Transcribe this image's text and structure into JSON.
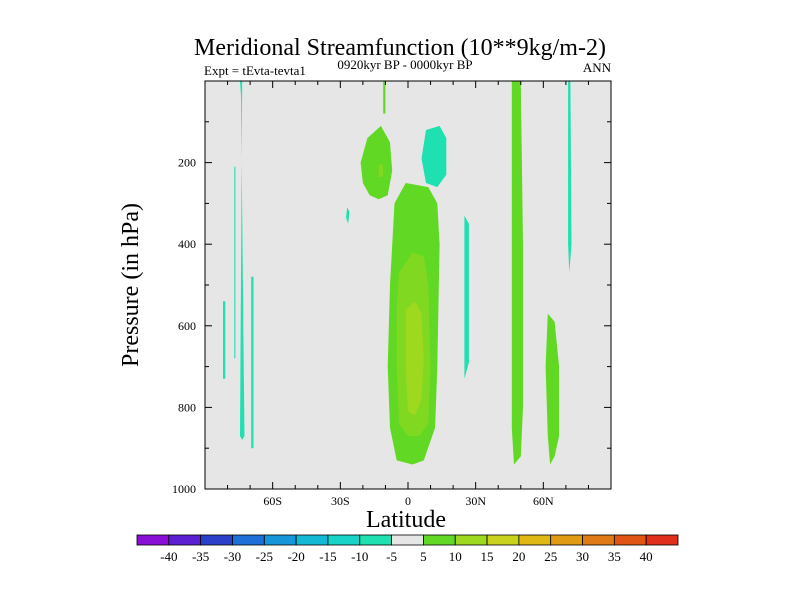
{
  "chart_data": {
    "type": "contour",
    "title": "Meridional Streamfunction (10**9kg/m-2)",
    "subtitle_center": "0920kyr BP - 0000kyr BP",
    "subtitle_left": "Expt = tEvta-tevta1",
    "subtitle_right": "ANN",
    "xlabel": "Latitude",
    "ylabel": "Pressure (in hPa)",
    "xlim": [
      -90,
      90
    ],
    "ylim": [
      1000,
      0
    ],
    "x_ticks": [
      {
        "value": -60,
        "label": "60S"
      },
      {
        "value": -30,
        "label": "30S"
      },
      {
        "value": 0,
        "label": "0"
      },
      {
        "value": 30,
        "label": "30N"
      },
      {
        "value": 60,
        "label": "60N"
      }
    ],
    "y_ticks": [
      {
        "value": 200,
        "label": "200"
      },
      {
        "value": 400,
        "label": "400"
      },
      {
        "value": 600,
        "label": "600"
      },
      {
        "value": 800,
        "label": "800"
      },
      {
        "value": 1000,
        "label": "1000"
      }
    ],
    "background_color": "#e6e6e6",
    "colorbar": {
      "labels": [
        "-40",
        "-35",
        "-30",
        "-25",
        "-20",
        "-15",
        "-10",
        "-5",
        "5",
        "10",
        "15",
        "20",
        "25",
        "30",
        "35",
        "40"
      ],
      "colors": [
        "#8a0fd6",
        "#5c1fd1",
        "#2b3fc9",
        "#1f6fd8",
        "#1696d8",
        "#14b8d4",
        "#18d4c8",
        "#1fe0b0",
        "#e6e6e6",
        "#60d824",
        "#9ed81f",
        "#c9d21c",
        "#e0b816",
        "#e09a14",
        "#e07a14",
        "#e05514",
        "#e0301c"
      ]
    },
    "regions": [
      {
        "sign": "neg",
        "level": -5,
        "points": [
          [
            -74.5,
            870
          ],
          [
            -73.5,
            880
          ],
          [
            -72.5,
            870
          ],
          [
            -73,
            600
          ],
          [
            -74,
            40
          ],
          [
            -74.5,
            0
          ],
          [
            -73.5,
            0
          ]
        ]
      },
      {
        "sign": "neg",
        "level": -5,
        "points": [
          [
            -77,
            210
          ],
          [
            -76.5,
            210
          ],
          [
            -76.5,
            680
          ],
          [
            -77,
            680
          ]
        ]
      },
      {
        "sign": "neg",
        "level": -5,
        "points": [
          [
            -82,
            540
          ],
          [
            -81,
            540
          ],
          [
            -81,
            730
          ],
          [
            -82,
            730
          ]
        ]
      },
      {
        "sign": "neg",
        "level": -5,
        "points": [
          [
            -69.5,
            480
          ],
          [
            -68.5,
            480
          ],
          [
            -68.5,
            900
          ],
          [
            -69.5,
            900
          ]
        ]
      },
      {
        "sign": "neg",
        "level": -5,
        "points": [
          [
            -27,
            310
          ],
          [
            -26,
            320
          ],
          [
            -26.5,
            350
          ],
          [
            -27.5,
            335
          ]
        ]
      },
      {
        "sign": "neg",
        "level": -5,
        "points": [
          [
            8,
            120
          ],
          [
            14,
            110
          ],
          [
            17,
            140
          ],
          [
            17,
            230
          ],
          [
            13,
            260
          ],
          [
            8,
            250
          ],
          [
            6,
            190
          ]
        ]
      },
      {
        "sign": "neg",
        "level": -5,
        "points": [
          [
            25,
            330
          ],
          [
            27,
            350
          ],
          [
            27,
            690
          ],
          [
            25,
            730
          ]
        ]
      },
      {
        "sign": "neg",
        "level": -5,
        "points": [
          [
            71,
            0
          ],
          [
            72,
            0
          ],
          [
            72.5,
            400
          ],
          [
            71.5,
            470
          ],
          [
            71,
            400
          ]
        ]
      },
      {
        "sign": "pos",
        "level": 5,
        "points": [
          [
            -11,
            0
          ],
          [
            -10,
            0
          ],
          [
            -10,
            80
          ],
          [
            -11,
            80
          ]
        ]
      },
      {
        "sign": "pos",
        "level": 5,
        "points": [
          [
            -20,
            250
          ],
          [
            -21,
            200
          ],
          [
            -18,
            140
          ],
          [
            -12,
            110
          ],
          [
            -8,
            150
          ],
          [
            -7,
            220
          ],
          [
            -9,
            280
          ],
          [
            -13,
            290
          ],
          [
            -17,
            280
          ]
        ]
      },
      {
        "sign": "pos",
        "level": 5,
        "points": [
          [
            -6,
            300
          ],
          [
            -1,
            250
          ],
          [
            9,
            260
          ],
          [
            13,
            300
          ],
          [
            14,
            400
          ],
          [
            13,
            700
          ],
          [
            12,
            850
          ],
          [
            7,
            930
          ],
          [
            2,
            940
          ],
          [
            -5,
            930
          ],
          [
            -8,
            850
          ],
          [
            -9,
            700
          ],
          [
            -8,
            500
          ]
        ]
      },
      {
        "sign": "pos",
        "level": 5,
        "points": [
          [
            46,
            0
          ],
          [
            50,
            0
          ],
          [
            51,
            400
          ],
          [
            51,
            800
          ],
          [
            50,
            920
          ],
          [
            47,
            940
          ],
          [
            46,
            850
          ],
          [
            46,
            400
          ]
        ]
      },
      {
        "sign": "pos",
        "level": 5,
        "points": [
          [
            62,
            570
          ],
          [
            65,
            590
          ],
          [
            67,
            700
          ],
          [
            67,
            870
          ],
          [
            65,
            920
          ],
          [
            63,
            940
          ],
          [
            62,
            870
          ],
          [
            61,
            700
          ]
        ]
      },
      {
        "sign": "pos",
        "level": 10,
        "points": [
          [
            -4,
            470
          ],
          [
            2,
            420
          ],
          [
            7,
            430
          ],
          [
            9,
            500
          ],
          [
            10,
            700
          ],
          [
            9,
            840
          ],
          [
            5,
            870
          ],
          [
            0,
            870
          ],
          [
            -4,
            840
          ],
          [
            -5,
            700
          ],
          [
            -5,
            550
          ]
        ]
      },
      {
        "sign": "pos",
        "level": 10,
        "points": [
          [
            -13,
            205
          ],
          [
            -11,
            205
          ],
          [
            -11,
            235
          ],
          [
            -13,
            235
          ]
        ]
      },
      {
        "sign": "pos",
        "level": 15,
        "points": [
          [
            -1,
            560
          ],
          [
            3,
            540
          ],
          [
            6,
            570
          ],
          [
            7,
            680
          ],
          [
            6,
            780
          ],
          [
            3,
            820
          ],
          [
            0,
            810
          ],
          [
            -1,
            700
          ]
        ]
      }
    ]
  }
}
